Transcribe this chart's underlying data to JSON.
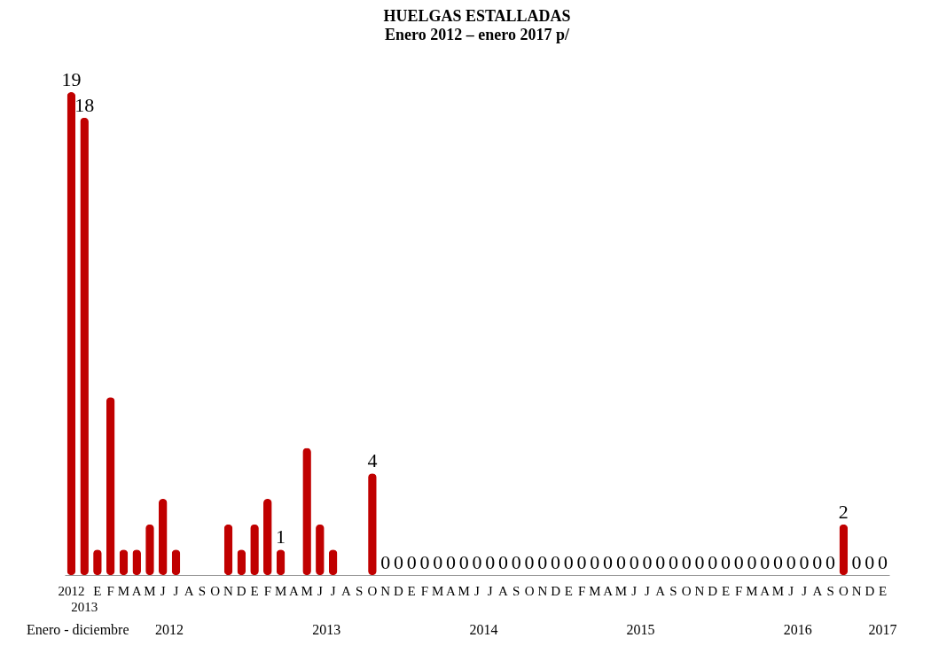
{
  "chart_data": {
    "type": "bar",
    "title": "HUELGAS ESTALLADAS",
    "subtitle": "Enero 2012 – enero 2017 p/",
    "categories": [
      "2012",
      "2013",
      "E",
      "F",
      "M",
      "A",
      "M",
      "J",
      "J",
      "A",
      "S",
      "O",
      "N",
      "D",
      "E",
      "F",
      "M",
      "A",
      "M",
      "J",
      "J",
      "A",
      "S",
      "O",
      "N",
      "D",
      "E",
      "F",
      "M",
      "A",
      "M",
      "J",
      "J",
      "A",
      "S",
      "O",
      "N",
      "D",
      "E",
      "F",
      "M",
      "A",
      "M",
      "J",
      "J",
      "A",
      "S",
      "O",
      "N",
      "D",
      "E",
      "F",
      "M",
      "A",
      "M",
      "J",
      "J",
      "A",
      "S",
      "O",
      "N",
      "D",
      "E"
    ],
    "values": [
      19,
      18,
      1,
      7,
      1,
      1,
      2,
      3,
      1,
      0,
      0,
      0,
      2,
      1,
      2,
      3,
      1,
      0,
      5,
      2,
      1,
      0,
      0,
      4,
      0,
      0,
      0,
      0,
      0,
      0,
      0,
      0,
      0,
      0,
      0,
      0,
      0,
      0,
      0,
      0,
      0,
      0,
      0,
      0,
      0,
      0,
      0,
      0,
      0,
      0,
      0,
      0,
      0,
      0,
      0,
      0,
      0,
      0,
      0,
      2,
      0,
      0,
      0
    ],
    "value_labels": [
      "19",
      "18",
      null,
      null,
      null,
      null,
      null,
      null,
      null,
      null,
      null,
      null,
      null,
      null,
      null,
      null,
      "1",
      null,
      null,
      null,
      null,
      null,
      null,
      "4",
      "0",
      "0",
      "0",
      "0",
      "0",
      "0",
      "0",
      "0",
      "0",
      "0",
      "0",
      "0",
      "0",
      "0",
      "0",
      "0",
      "0",
      "0",
      "0",
      "0",
      "0",
      "0",
      "0",
      "0",
      "0",
      "0",
      "0",
      "0",
      "0",
      "0",
      "0",
      "0",
      "0",
      "0",
      "0",
      "2",
      "0",
      "0",
      "0"
    ],
    "color": "#c00000",
    "annotations": [
      "Enero - diciembre",
      "2012",
      "2013",
      "2014",
      "2015",
      "2016",
      "2017"
    ]
  }
}
